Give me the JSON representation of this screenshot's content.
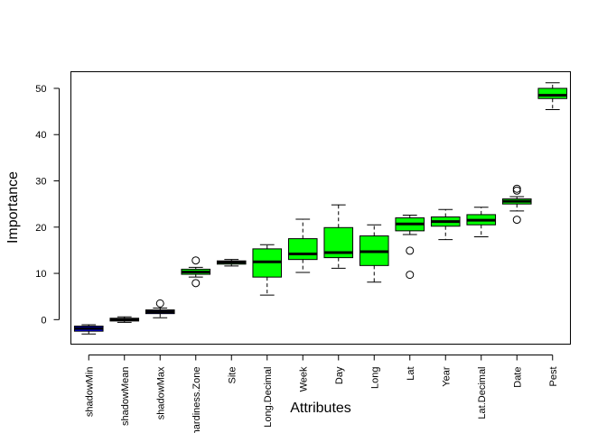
{
  "chart_data": {
    "type": "boxplot",
    "title": "",
    "xlabel": "Attributes",
    "ylabel": "Importance",
    "ylim": [
      -5.3,
      53.6
    ],
    "yticks": [
      0,
      10,
      20,
      30,
      40,
      50
    ],
    "grid": false,
    "legend": "none",
    "colors": {
      "shadow": "#0000ff",
      "confirmed": "#00ff00",
      "outline": "#000000"
    },
    "categories": [
      {
        "name": "shadowMin",
        "group": "shadow",
        "whisker_low": -3.1,
        "q1": -2.5,
        "median": -1.9,
        "q3": -1.4,
        "whisker_high": -1.1,
        "outliers": []
      },
      {
        "name": "shadowMean",
        "group": "shadow",
        "whisker_low": -0.6,
        "q1": -0.3,
        "median": 0.0,
        "q3": 0.3,
        "whisker_high": 0.6,
        "outliers": []
      },
      {
        "name": "shadowMax",
        "group": "shadow",
        "whisker_low": 0.4,
        "q1": 1.3,
        "median": 1.7,
        "q3": 2.1,
        "whisker_high": 2.5,
        "outliers": [
          3.5
        ]
      },
      {
        "name": "hardiness.Zone",
        "group": "confirmed",
        "whisker_low": 9.2,
        "q1": 9.8,
        "median": 10.3,
        "q3": 10.9,
        "whisker_high": 11.3,
        "outliers": [
          12.8,
          7.9
        ]
      },
      {
        "name": "Site",
        "group": "confirmed",
        "whisker_low": 11.6,
        "q1": 12.0,
        "median": 12.4,
        "q3": 12.7,
        "whisker_high": 13.0,
        "outliers": []
      },
      {
        "name": "Long.Decimal",
        "group": "confirmed",
        "whisker_low": 5.3,
        "q1": 9.2,
        "median": 12.5,
        "q3": 15.3,
        "whisker_high": 16.2,
        "outliers": []
      },
      {
        "name": "Week",
        "group": "confirmed",
        "whisker_low": 10.2,
        "q1": 13.0,
        "median": 14.2,
        "q3": 17.5,
        "whisker_high": 21.7,
        "outliers": []
      },
      {
        "name": "Day",
        "group": "confirmed",
        "whisker_low": 11.1,
        "q1": 13.4,
        "median": 14.5,
        "q3": 19.9,
        "whisker_high": 24.8,
        "outliers": []
      },
      {
        "name": "Long",
        "group": "confirmed",
        "whisker_low": 8.1,
        "q1": 11.7,
        "median": 14.7,
        "q3": 18.1,
        "whisker_high": 20.5,
        "outliers": []
      },
      {
        "name": "Lat",
        "group": "confirmed",
        "whisker_low": 18.4,
        "q1": 19.2,
        "median": 20.7,
        "q3": 22.0,
        "whisker_high": 22.6,
        "outliers": [
          14.9,
          9.7
        ]
      },
      {
        "name": "Year",
        "group": "confirmed",
        "whisker_low": 17.3,
        "q1": 20.2,
        "median": 21.2,
        "q3": 22.2,
        "whisker_high": 23.8,
        "outliers": []
      },
      {
        "name": "Lat.Decimal",
        "group": "confirmed",
        "whisker_low": 17.9,
        "q1": 20.5,
        "median": 21.5,
        "q3": 22.7,
        "whisker_high": 24.3,
        "outliers": []
      },
      {
        "name": "Date",
        "group": "confirmed",
        "whisker_low": 23.5,
        "q1": 25.0,
        "median": 25.6,
        "q3": 26.1,
        "whisker_high": 26.6,
        "outliers": [
          28.3,
          27.9,
          21.6
        ]
      },
      {
        "name": "Pest",
        "group": "confirmed",
        "whisker_low": 45.4,
        "q1": 47.8,
        "median": 48.5,
        "q3": 50.0,
        "whisker_high": 51.2,
        "outliers": []
      }
    ]
  }
}
